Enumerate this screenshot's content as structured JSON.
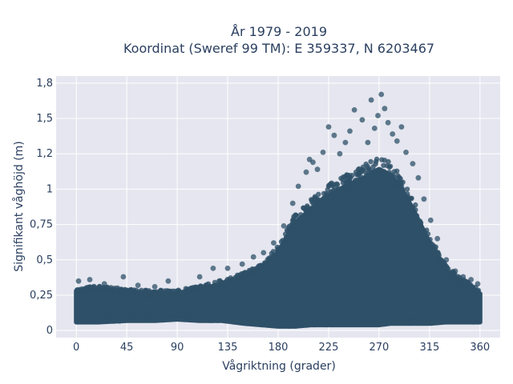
{
  "chart_data": {
    "type": "scatter",
    "title_line1": "År 1979 - 2019",
    "title_line2": "Koordinat (Sweref 99 TM): E 359337, N 6203467",
    "xlabel": "Vågriktning (grader)",
    "ylabel": "Signifikant våghöjd (m)",
    "xlim": [
      -18,
      378
    ],
    "ylim": [
      -0.05,
      1.8
    ],
    "x_ticks": [
      {
        "value": 0,
        "label": "0"
      },
      {
        "value": 45,
        "label": "45"
      },
      {
        "value": 90,
        "label": "90"
      },
      {
        "value": 135,
        "label": "135"
      },
      {
        "value": 180,
        "label": "180"
      },
      {
        "value": 225,
        "label": "225"
      },
      {
        "value": 270,
        "label": "270"
      },
      {
        "value": 315,
        "label": "315"
      },
      {
        "value": 360,
        "label": "360"
      }
    ],
    "y_ticks": [
      {
        "value": 0,
        "label": "0"
      },
      {
        "value": 0.25,
        "label": "0,25"
      },
      {
        "value": 0.5,
        "label": "0,5"
      },
      {
        "value": 0.75,
        "label": "0,75"
      },
      {
        "value": 1.0,
        "label": "1"
      },
      {
        "value": 1.25,
        "label": "1,2"
      },
      {
        "value": 1.5,
        "label": "1,5"
      },
      {
        "value": 1.75,
        "label": "1,8"
      }
    ],
    "grid": true,
    "marker_color": "#2e5068",
    "plot_bg": "#e5e6ef",
    "envelope": {
      "direction": [
        0,
        20,
        45,
        70,
        90,
        110,
        130,
        150,
        165,
        180,
        195,
        210,
        225,
        240,
        255,
        265,
        270,
        280,
        290,
        300,
        315,
        330,
        345,
        360
      ],
      "upper_height": [
        0.28,
        0.29,
        0.27,
        0.26,
        0.26,
        0.29,
        0.33,
        0.38,
        0.44,
        0.55,
        0.76,
        0.86,
        0.95,
        1.02,
        1.07,
        1.12,
        1.14,
        1.1,
        1.0,
        0.86,
        0.62,
        0.42,
        0.34,
        0.26
      ],
      "lower_height": [
        0.06,
        0.06,
        0.07,
        0.07,
        0.08,
        0.07,
        0.07,
        0.05,
        0.04,
        0.03,
        0.03,
        0.04,
        0.04,
        0.04,
        0.04,
        0.04,
        0.04,
        0.05,
        0.05,
        0.05,
        0.05,
        0.06,
        0.06,
        0.06
      ]
    },
    "outliers": [
      [
        2,
        0.35
      ],
      [
        12,
        0.36
      ],
      [
        25,
        0.33
      ],
      [
        42,
        0.38
      ],
      [
        55,
        0.32
      ],
      [
        70,
        0.31
      ],
      [
        82,
        0.35
      ],
      [
        110,
        0.38
      ],
      [
        122,
        0.44
      ],
      [
        135,
        0.44
      ],
      [
        148,
        0.47
      ],
      [
        158,
        0.52
      ],
      [
        167,
        0.55
      ],
      [
        176,
        0.62
      ],
      [
        185,
        0.74
      ],
      [
        193,
        0.9
      ],
      [
        198,
        1.02
      ],
      [
        205,
        1.12
      ],
      [
        208,
        1.21
      ],
      [
        211,
        1.19
      ],
      [
        215,
        1.14
      ],
      [
        220,
        1.26
      ],
      [
        225,
        1.44
      ],
      [
        230,
        1.38
      ],
      [
        235,
        1.25
      ],
      [
        240,
        1.33
      ],
      [
        244,
        1.41
      ],
      [
        248,
        1.56
      ],
      [
        255,
        1.49
      ],
      [
        260,
        1.33
      ],
      [
        263,
        1.63
      ],
      [
        266,
        1.43
      ],
      [
        269,
        1.52
      ],
      [
        272,
        1.67
      ],
      [
        275,
        1.57
      ],
      [
        278,
        1.47
      ],
      [
        282,
        1.39
      ],
      [
        286,
        1.34
      ],
      [
        290,
        1.44
      ],
      [
        294,
        1.26
      ],
      [
        300,
        1.18
      ],
      [
        305,
        1.08
      ],
      [
        310,
        0.93
      ],
      [
        316,
        0.78
      ],
      [
        322,
        0.65
      ],
      [
        330,
        0.5
      ],
      [
        338,
        0.42
      ],
      [
        345,
        0.38
      ],
      [
        352,
        0.36
      ],
      [
        358,
        0.33
      ]
    ]
  }
}
